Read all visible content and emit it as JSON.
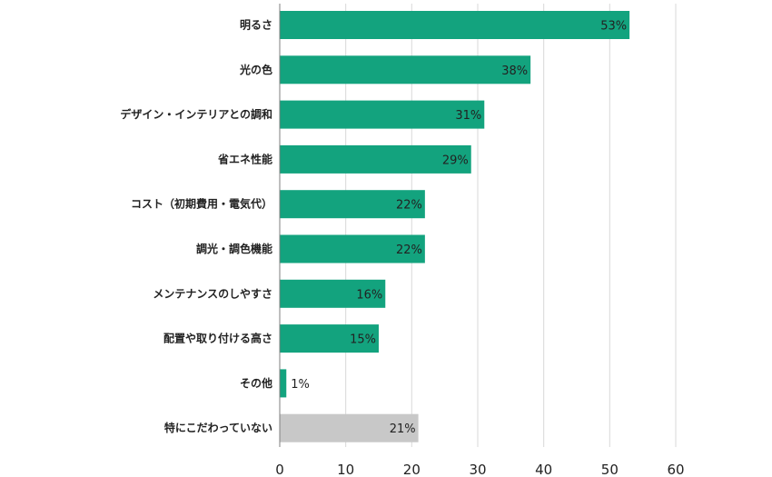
{
  "chart_data": {
    "type": "bar",
    "orientation": "horizontal",
    "categories": [
      "明るさ",
      "光の色",
      "デザイン・インテリアとの調和",
      "省エネ性能",
      "コスト（初期費用・電気代）",
      "調光・調色機能",
      "メンテナンスのしやすさ",
      "配置や取り付ける高さ",
      "その他",
      "特にこだわっていない"
    ],
    "values": [
      53,
      38,
      31,
      29,
      22,
      22,
      16,
      15,
      1,
      21
    ],
    "data_labels": [
      "53%",
      "38%",
      "31%",
      "29%",
      "22%",
      "22%",
      "16%",
      "15%",
      "1%",
      "21%"
    ],
    "bar_colors": [
      "#13a37e",
      "#13a37e",
      "#13a37e",
      "#13a37e",
      "#13a37e",
      "#13a37e",
      "#13a37e",
      "#13a37e",
      "#13a37e",
      "#c8c8c8"
    ],
    "x_ticks": [
      "0",
      "10",
      "20",
      "30",
      "40",
      "50",
      "60"
    ],
    "xlim": [
      0,
      60
    ],
    "grid": "vertical",
    "title": "",
    "xlabel": "",
    "ylabel": ""
  },
  "colors": {
    "accent": "#13a37e",
    "neutral": "#c8c8c8",
    "grid": "#d9d9d9",
    "axis": "#7f7f7f"
  }
}
